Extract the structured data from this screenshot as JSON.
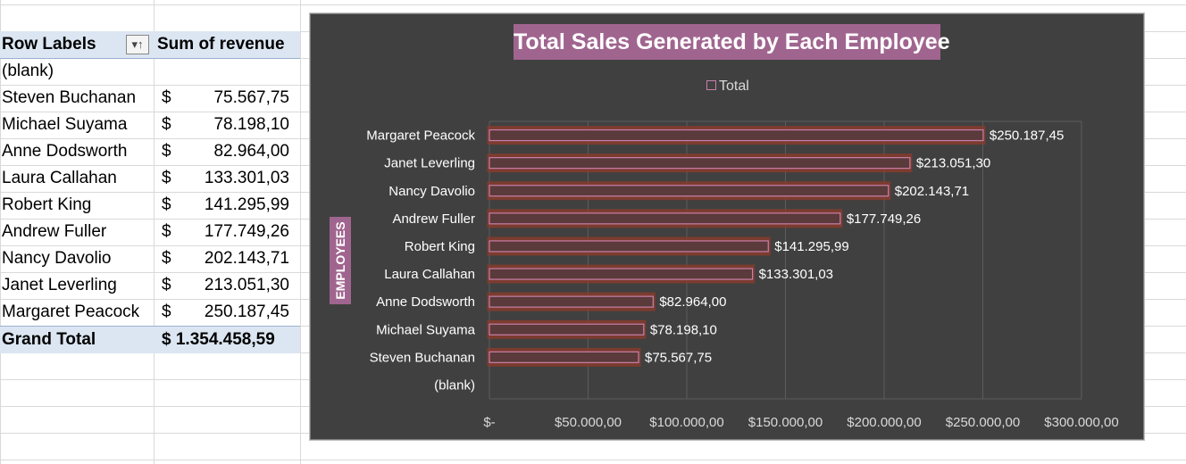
{
  "pivot": {
    "header": {
      "row_labels": "Row Labels",
      "sum_label": "Sum of revenue",
      "filter_icon": "filter-sort-icon",
      "filter_glyph": "▾↑"
    },
    "rows": [
      {
        "label": "(blank)",
        "currency": "",
        "amount": ""
      },
      {
        "label": "Steven Buchanan",
        "currency": "$",
        "amount": "75.567,75"
      },
      {
        "label": "Michael Suyama",
        "currency": "$",
        "amount": "78.198,10"
      },
      {
        "label": "Anne Dodsworth",
        "currency": "$",
        "amount": "82.964,00"
      },
      {
        "label": "Laura Callahan",
        "currency": "$",
        "amount": "133.301,03"
      },
      {
        "label": "Robert King",
        "currency": "$",
        "amount": "141.295,99"
      },
      {
        "label": "Andrew Fuller",
        "currency": "$",
        "amount": "177.749,26"
      },
      {
        "label": "Nancy Davolio",
        "currency": "$",
        "amount": "202.143,71"
      },
      {
        "label": "Janet Leverling",
        "currency": "$",
        "amount": "213.051,30"
      },
      {
        "label": "Margaret Peacock",
        "currency": "$",
        "amount": "250.187,45"
      }
    ],
    "grand_total": {
      "label": "Grand Total",
      "amount": "$ 1.354.458,59"
    }
  },
  "colors": {
    "chart_bg": "#404040",
    "accent": "#a0658f",
    "bar_outline": "#c87fab",
    "bar_glow": "#8a3b2a",
    "header_fill": "#dce6f2"
  },
  "chart_data": {
    "type": "bar",
    "orientation": "horizontal",
    "title": "Total Sales Generated by Each Employee",
    "ylabel": "EMPLOYEES",
    "xlabel": "",
    "legend": {
      "placement": "top",
      "entries": [
        "Total"
      ]
    },
    "categories": [
      "Margaret Peacock",
      "Janet Leverling",
      "Nancy Davolio",
      "Andrew Fuller",
      "Robert King",
      "Laura Callahan",
      "Anne Dodsworth",
      "Michael Suyama",
      "Steven Buchanan",
      "(blank)"
    ],
    "series": [
      {
        "name": "Total",
        "values": [
          250187.45,
          213051.3,
          202143.71,
          177749.26,
          141295.99,
          133301.03,
          82964.0,
          78198.1,
          75567.75,
          null
        ]
      }
    ],
    "data_labels": [
      "$250.187,45",
      "$213.051,30",
      "$202.143,71",
      "$177.749,26",
      "$141.295,99",
      "$133.301,03",
      "$82.964,00",
      "$78.198,10",
      "$75.567,75",
      ""
    ],
    "xlim": [
      0,
      300000
    ],
    "x_ticks": [
      0,
      50000,
      100000,
      150000,
      200000,
      250000,
      300000
    ],
    "x_tick_labels": [
      "$-",
      "$50.000,00",
      "$100.000,00",
      "$150.000,00",
      "$200.000,00",
      "$250.000,00",
      "$300.000,00"
    ],
    "grid": true
  }
}
